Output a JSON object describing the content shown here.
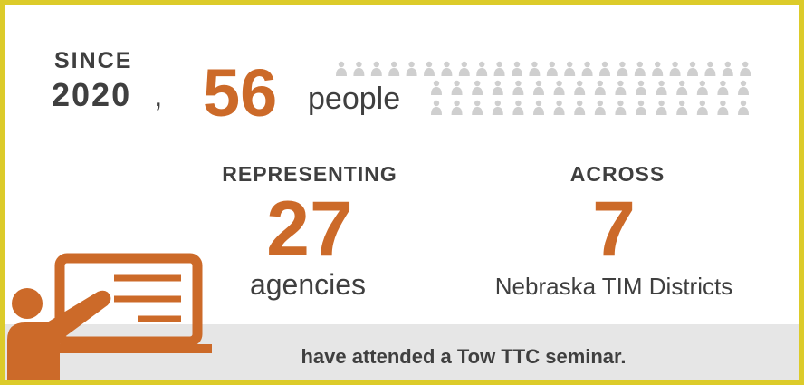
{
  "header": {
    "since": "SINCE",
    "year": "2020",
    "comma": ",",
    "count": 56,
    "count_unit": "people"
  },
  "stats": [
    {
      "label": "REPRESENTING",
      "value": 27,
      "unit": "agencies"
    },
    {
      "label": "ACROSS",
      "value": 7,
      "unit": "Nebraska TIM Districts"
    }
  ],
  "footer": "have attended a Tow TTC seminar."
}
